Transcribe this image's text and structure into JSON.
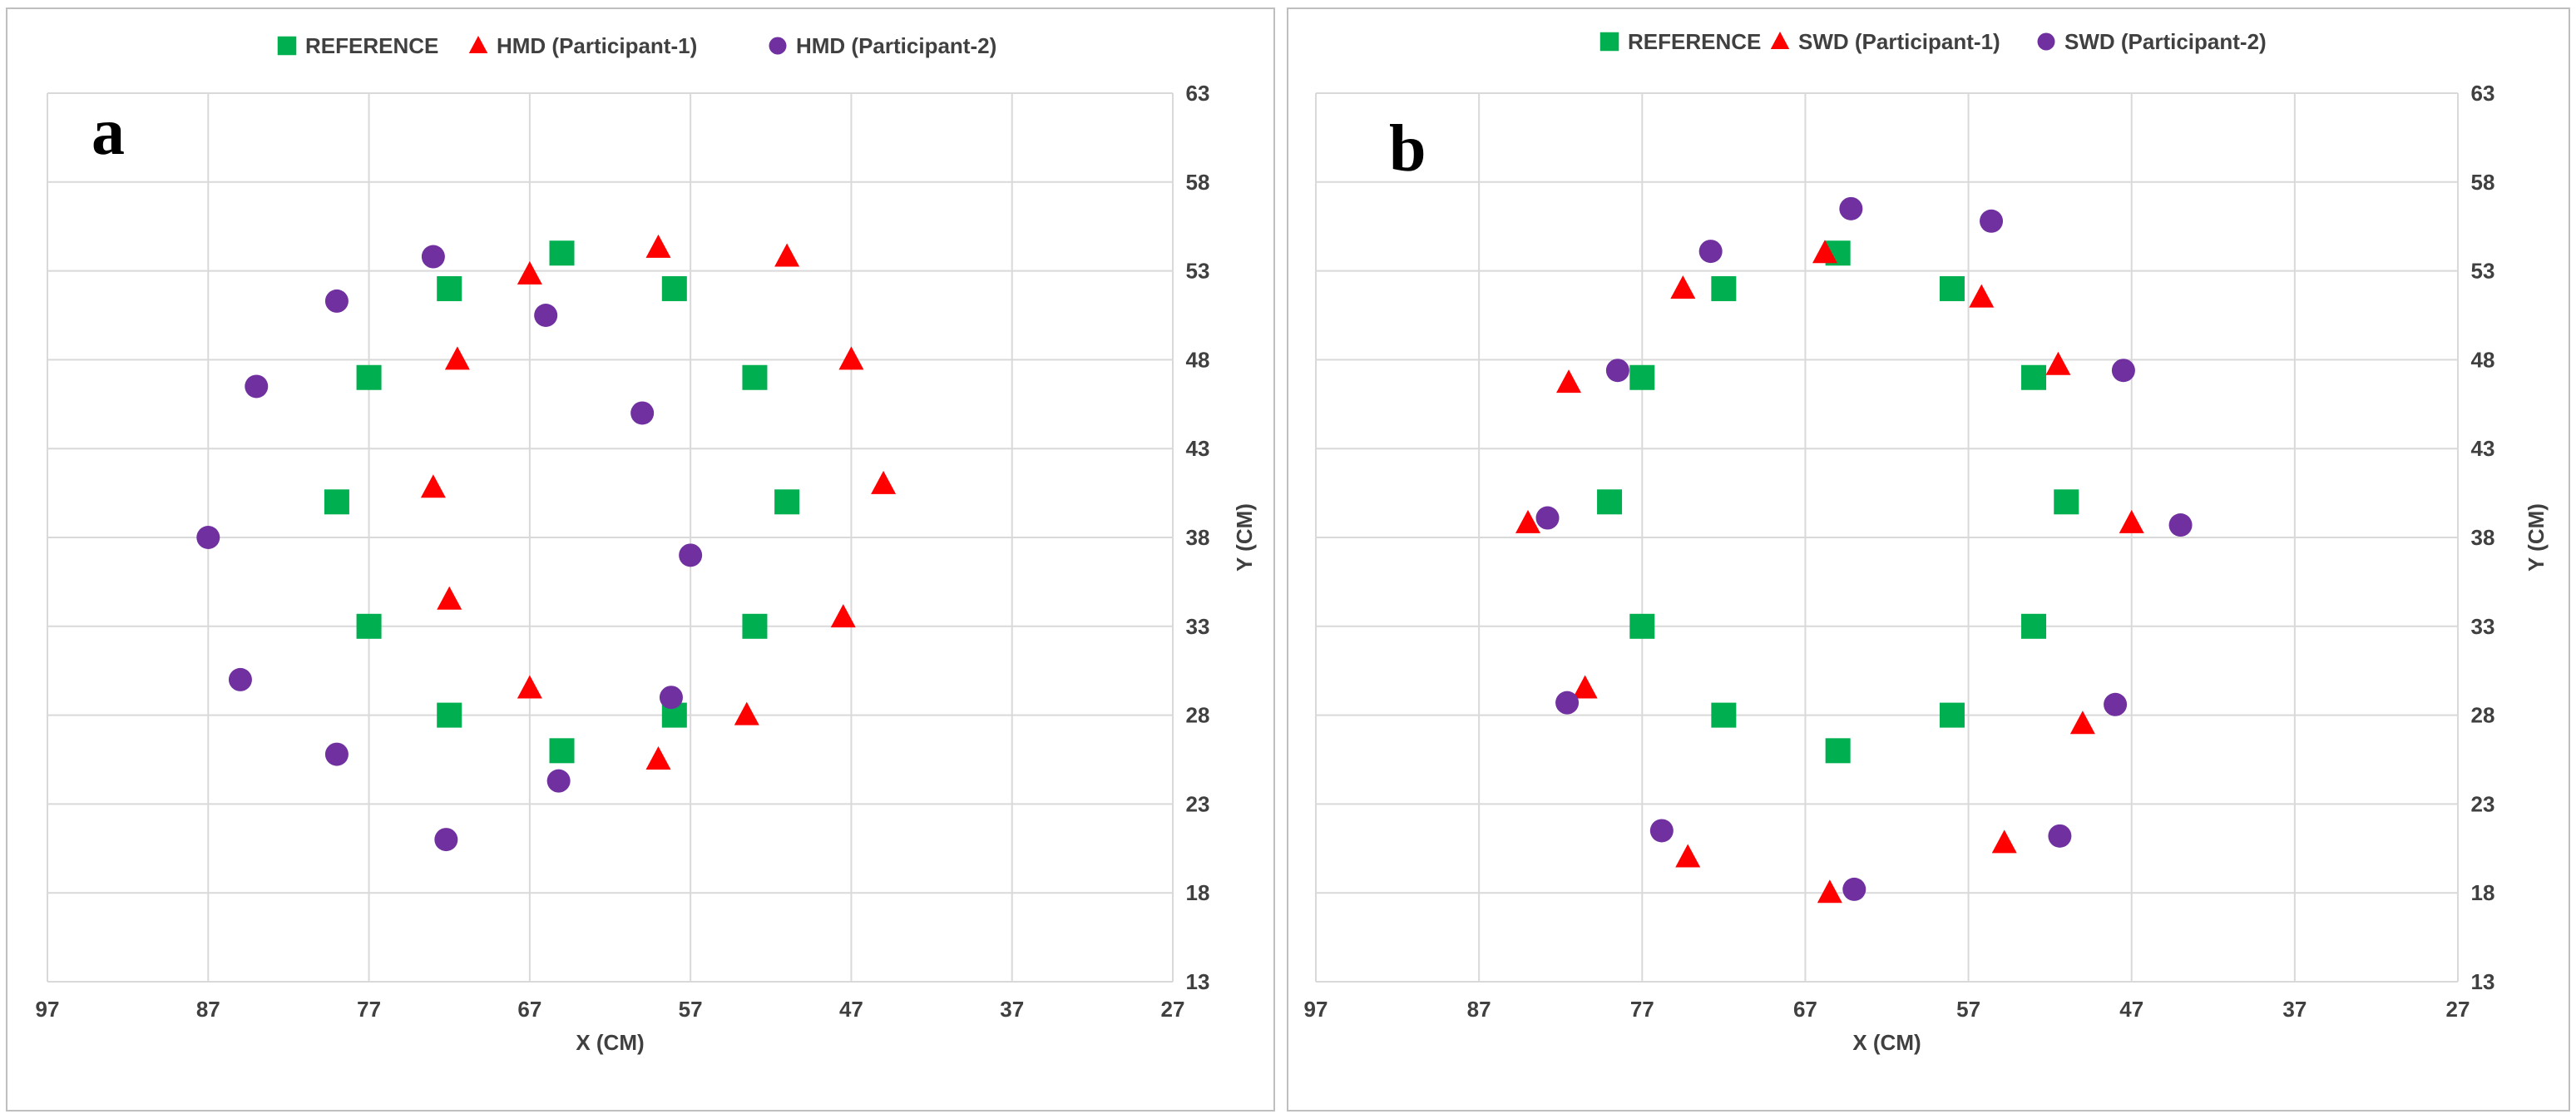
{
  "colors": {
    "reference": "#00b050",
    "participant1": "#ff0000",
    "participant2": "#7030a0"
  },
  "chart_data": [
    {
      "type": "scatter",
      "panel_label": "a",
      "xlabel": "X (CM)",
      "ylabel": "Y (CM)",
      "xlim": [
        97,
        27
      ],
      "ylim": [
        13,
        63
      ],
      "xticks": [
        97,
        87,
        77,
        67,
        57,
        47,
        37,
        27
      ],
      "yticks": [
        13,
        18,
        23,
        28,
        33,
        38,
        43,
        48,
        53,
        58,
        63
      ],
      "grid": true,
      "legend_position": "top",
      "series": [
        {
          "name": "REFERENCE",
          "marker": "square",
          "color_key": "reference",
          "points": [
            [
              65,
              54
            ],
            [
              72,
              52
            ],
            [
              58,
              52
            ],
            [
              77,
              47
            ],
            [
              53,
              47
            ],
            [
              79,
              40
            ],
            [
              51,
              40
            ],
            [
              77,
              33
            ],
            [
              53,
              33
            ],
            [
              72,
              28
            ],
            [
              58,
              28
            ],
            [
              65,
              26
            ]
          ]
        },
        {
          "name": "HMD (Participant-1)",
          "marker": "triangle",
          "color_key": "participant1",
          "points": [
            [
              59,
              54.3
            ],
            [
              51,
              53.8
            ],
            [
              67,
              52.8
            ],
            [
              71.5,
              48
            ],
            [
              47,
              48
            ],
            [
              73,
              40.8
            ],
            [
              45,
              41
            ],
            [
              72,
              34.5
            ],
            [
              47.5,
              33.5
            ],
            [
              67,
              29.5
            ],
            [
              53.5,
              28
            ],
            [
              59,
              25.5
            ]
          ]
        },
        {
          "name": "HMD (Participant-2)",
          "marker": "circle",
          "color_key": "participant2",
          "points": [
            [
              73,
              53.8
            ],
            [
              79,
              51.3
            ],
            [
              66,
              50.5
            ],
            [
              84,
              46.5
            ],
            [
              60,
              45
            ],
            [
              87,
              38
            ],
            [
              57,
              37
            ],
            [
              85,
              30
            ],
            [
              58.2,
              29
            ],
            [
              79,
              25.8
            ],
            [
              65.2,
              24.3
            ],
            [
              72.2,
              21
            ]
          ]
        }
      ]
    },
    {
      "type": "scatter",
      "panel_label": "b",
      "xlabel": "X (CM)",
      "ylabel": "Y (CM)",
      "xlim": [
        97,
        27
      ],
      "ylim": [
        13,
        63
      ],
      "xticks": [
        97,
        87,
        77,
        67,
        57,
        47,
        37,
        27
      ],
      "yticks": [
        13,
        18,
        23,
        28,
        33,
        38,
        43,
        48,
        53,
        58,
        63
      ],
      "grid": true,
      "legend_position": "top",
      "series": [
        {
          "name": "REFERENCE",
          "marker": "square",
          "color_key": "reference",
          "points": [
            [
              65,
              54
            ],
            [
              72,
              52
            ],
            [
              58,
              52
            ],
            [
              77,
              47
            ],
            [
              53,
              47
            ],
            [
              79,
              40
            ],
            [
              51,
              40
            ],
            [
              77,
              33
            ],
            [
              53,
              33
            ],
            [
              72,
              28
            ],
            [
              58,
              28
            ],
            [
              65,
              26
            ]
          ]
        },
        {
          "name": "SWD (Participant-1)",
          "marker": "triangle",
          "color_key": "participant1",
          "points": [
            [
              65.8,
              54
            ],
            [
              74.5,
              52
            ],
            [
              56.2,
              51.5
            ],
            [
              81.5,
              46.7
            ],
            [
              51.5,
              47.7
            ],
            [
              84,
              38.8
            ],
            [
              47,
              38.8
            ],
            [
              80.5,
              29.5
            ],
            [
              50,
              27.5
            ],
            [
              74.2,
              20
            ],
            [
              54.8,
              20.8
            ],
            [
              65.5,
              18
            ]
          ]
        },
        {
          "name": "SWD (Participant-2)",
          "marker": "circle",
          "color_key": "participant2",
          "points": [
            [
              64.2,
              56.5
            ],
            [
              55.6,
              55.8
            ],
            [
              72.8,
              54.1
            ],
            [
              78.5,
              47.4
            ],
            [
              47.5,
              47.4
            ],
            [
              82.8,
              39.1
            ],
            [
              44,
              38.7
            ],
            [
              81.6,
              28.7
            ],
            [
              48,
              28.6
            ],
            [
              75.8,
              21.5
            ],
            [
              51.4,
              21.2
            ],
            [
              64,
              18.2
            ]
          ]
        }
      ]
    }
  ]
}
